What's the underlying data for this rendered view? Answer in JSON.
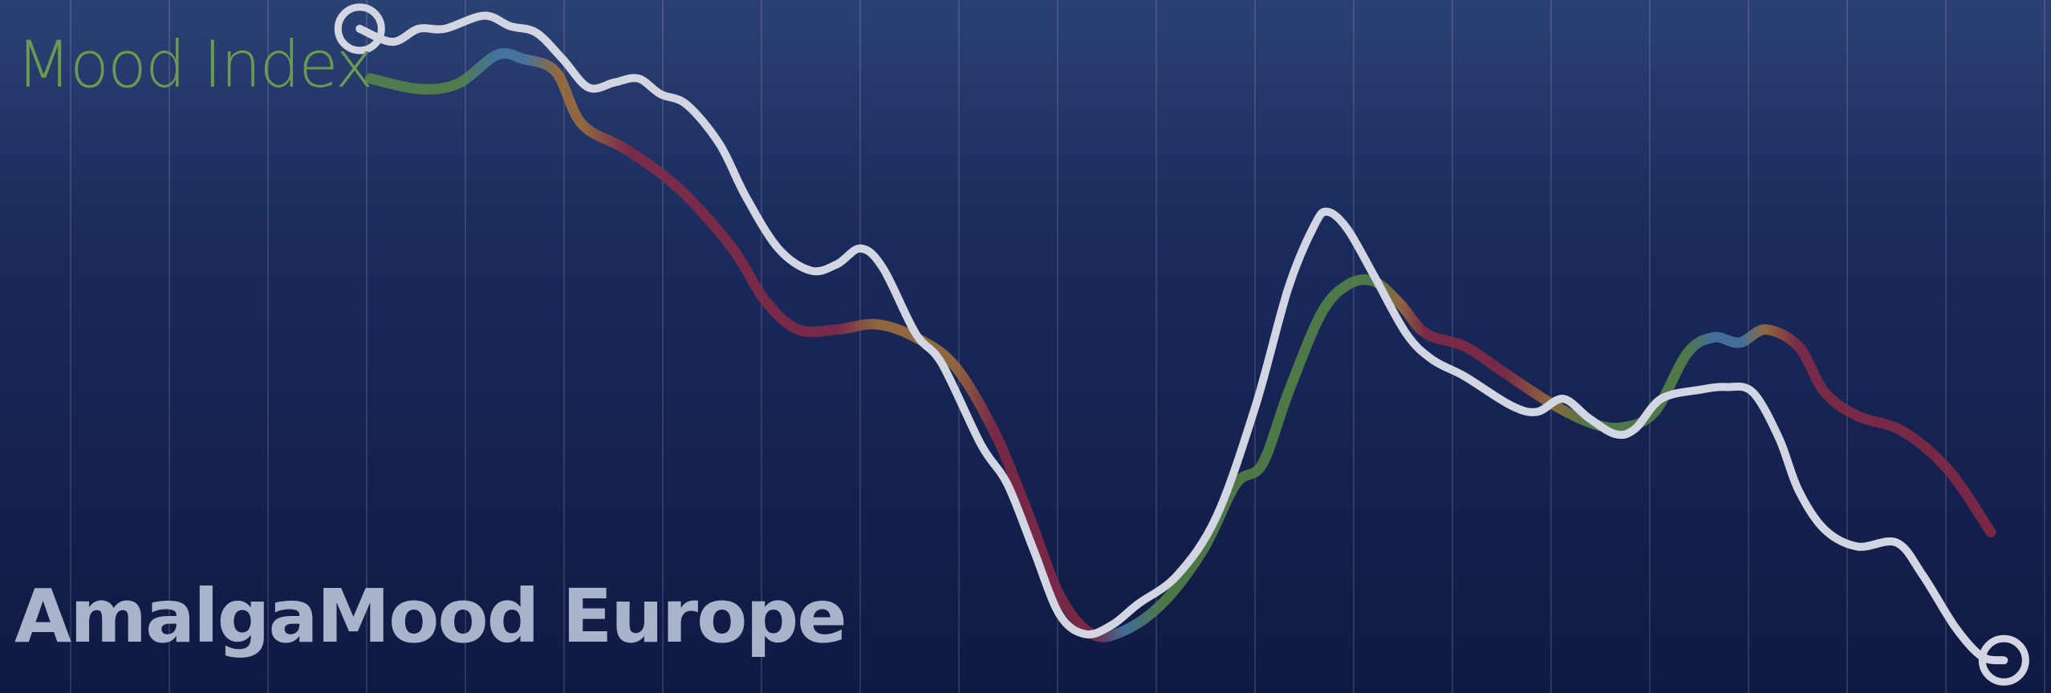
{
  "chart_data": {
    "type": "line",
    "title": "AmalgaMood Europe",
    "subtitle": "Mood Index",
    "xlim": [
      0,
      1568
    ],
    "ylim": [
      0,
      530
    ],
    "series": [
      {
        "color": "#d2d6e2",
        "x": [
          275,
          300,
          320,
          340,
          370,
          390,
          410,
          430,
          450,
          470,
          488,
          505,
          525,
          550,
          570,
          595,
          620,
          640,
          658,
          675,
          700,
          720,
          750,
          770,
          790,
          810,
          830,
          850,
          870,
          900,
          930,
          960,
          985,
          1005,
          1015,
          1030,
          1050,
          1075,
          1095,
          1120,
          1155,
          1175,
          1195,
          1215,
          1235,
          1250,
          1270,
          1300,
          1320,
          1340,
          1360,
          1375,
          1395,
          1420,
          1450,
          1470,
          1495,
          1515,
          1532
        ],
        "values": [
          508,
          498,
          508,
          508,
          518,
          510,
          505,
          485,
          463,
          467,
          470,
          458,
          450,
          420,
          380,
          340,
          323,
          328,
          340,
          325,
          275,
          252,
          190,
          160,
          110,
          60,
          45,
          52,
          68,
          90,
          135,
          220,
          310,
          358,
          368,
          355,
          320,
          275,
          255,
          242,
          220,
          215,
          225,
          210,
          198,
          202,
          225,
          232,
          234,
          230,
          195,
          155,
          125,
          112,
          115,
          90,
          50,
          28,
          25
        ]
      },
      {
        "color": "#8c2a45",
        "x": [
          283,
          320,
          350,
          380,
          400,
          425,
          445,
          480,
          520,
          560,
          585,
          610,
          640,
          670,
          700,
          730,
          760,
          785,
          810,
          835,
          860,
          890,
          920,
          945,
          965,
          985,
          1010,
          1030,
          1050,
          1070,
          1090,
          1120,
          1150,
          1185,
          1215,
          1240,
          1265,
          1290,
          1310,
          1330,
          1350,
          1375,
          1395,
          1420,
          1455,
          1490,
          1522
        ],
        "values": [
          470,
          462,
          466,
          488,
          485,
          475,
          435,
          415,
          385,
          340,
          300,
          278,
          278,
          282,
          272,
          250,
          200,
          140,
          75,
          45,
          48,
          70,
          110,
          160,
          175,
          230,
          290,
          312,
          315,
          298,
          275,
          265,
          245,
          222,
          207,
          203,
          215,
          260,
          272,
          268,
          278,
          265,
          230,
          212,
          200,
          170,
          123
        ],
        "colors": [
          "#5a8a45",
          "#5a8a45",
          "#5a8a45",
          "#4a7fa8",
          "#4a7fa8",
          "#a8743a",
          "#a8743a",
          "#8c2a45",
          "#8c2a45",
          "#8c2a45",
          "#8c2a45",
          "#8c2a45",
          "#8c2a45",
          "#a8743a",
          "#a8743a",
          "#a8743a",
          "#8c2a45",
          "#8c2a45",
          "#8c2a45",
          "#8c2a45",
          "#4a7fa8",
          "#5a8a45",
          "#5a8a45",
          "#5a8a45",
          "#5a8a45",
          "#5a8a45",
          "#5a8a45",
          "#5a8a45",
          "#5a8a45",
          "#a8743a",
          "#8c2a45",
          "#8c2a45",
          "#8c2a45",
          "#a8743a",
          "#5a8a45",
          "#5a8a45",
          "#5a8a45",
          "#5a8a45",
          "#4a7fa8",
          "#4a7fa8",
          "#a8743a",
          "#8c2a45",
          "#8c2a45",
          "#8c2a45",
          "#8c2a45",
          "#8c2a45",
          "#8c2a45"
        ]
      }
    ]
  }
}
